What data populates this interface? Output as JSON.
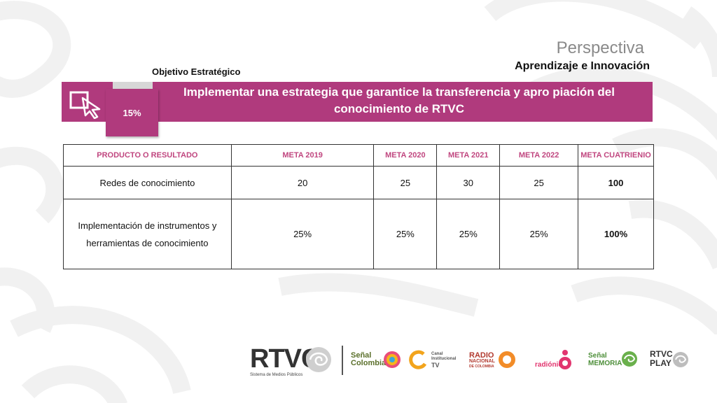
{
  "perspective": {
    "title": "Perspectiva",
    "subtitle": "Aprendizaje e Innovación"
  },
  "objective": {
    "label": "Objetivo Estratégico",
    "percentage": "15%",
    "text": "Implementar una estrategia que garantice la transferencia y apro piación   del conocimiento  de RTVC"
  },
  "table": {
    "headers": [
      "PRODUCTO O RESULTADO",
      "META 2019",
      "META 2020",
      "META 2021",
      "META 2022",
      "META CUATRIENIO"
    ],
    "rows": [
      [
        "Redes de conocimiento",
        "20",
        "25",
        "30",
        "25",
        "100"
      ],
      [
        "Implementación de instrumentos y herramientas de conocimiento",
        "25%",
        "25%",
        "25%",
        "25%",
        "100%"
      ]
    ]
  },
  "logos": {
    "rtvc": "RTVC",
    "rtvc_tagline": "Sistema de Medios Públicos",
    "senal_colombia": [
      "Señal",
      "Colombia"
    ],
    "canal_institucional": [
      "Canal",
      "Institucional",
      "TV"
    ],
    "radio_nacional": [
      "RADIO",
      "NACIONAL",
      "DE COLOMBIA"
    ],
    "radionica": "radiónica",
    "senal_memoria": [
      "Señal",
      "MEMORIA"
    ],
    "rtvc_play": [
      "RTVC",
      "PLAY"
    ]
  },
  "colors": {
    "banner": "#b03a7d",
    "header_text": "#c0467f"
  }
}
